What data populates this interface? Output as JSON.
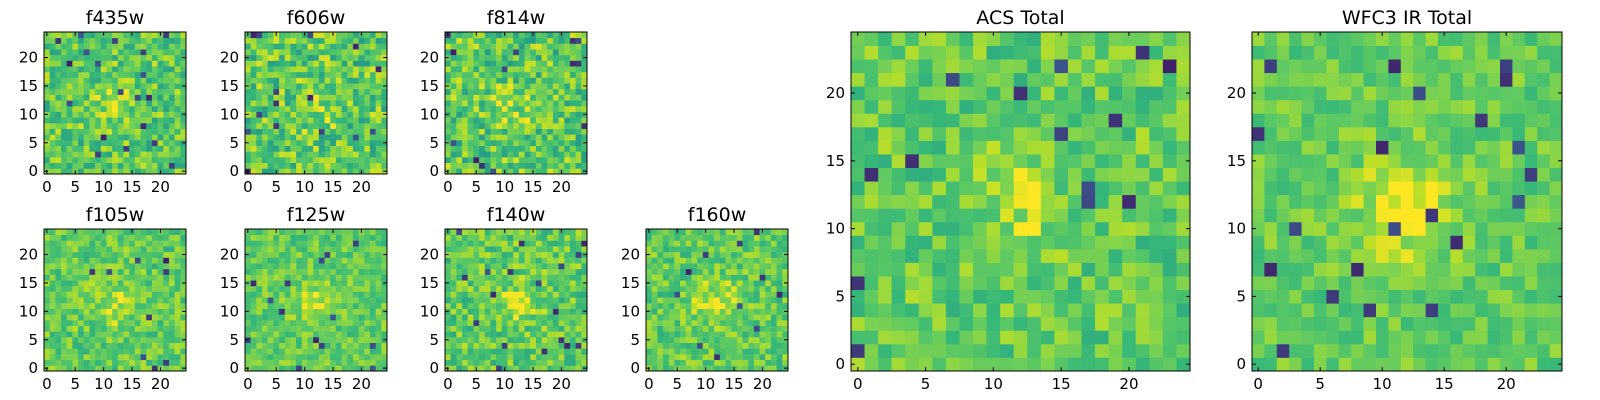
{
  "chart_data": [
    {
      "type": "heatmap",
      "title": "f435w",
      "size": 25,
      "colormap": "viridis",
      "xticks": [
        0,
        5,
        10,
        15,
        20
      ],
      "yticks": [
        0,
        5,
        10,
        15,
        20
      ],
      "xlim": [
        -0.5,
        24.5
      ],
      "ylim": [
        -0.5,
        24.5
      ],
      "grid": false
    },
    {
      "type": "heatmap",
      "title": "f606w",
      "size": 25,
      "colormap": "viridis",
      "xticks": [
        0,
        5,
        10,
        15,
        20
      ],
      "yticks": [
        0,
        5,
        10,
        15,
        20
      ],
      "xlim": [
        -0.5,
        24.5
      ],
      "ylim": [
        -0.5,
        24.5
      ],
      "grid": false
    },
    {
      "type": "heatmap",
      "title": "f814w",
      "size": 25,
      "colormap": "viridis",
      "xticks": [
        0,
        5,
        10,
        15,
        20
      ],
      "yticks": [
        0,
        5,
        10,
        15,
        20
      ],
      "xlim": [
        -0.5,
        24.5
      ],
      "ylim": [
        -0.5,
        24.5
      ],
      "grid": false
    },
    {
      "type": "heatmap",
      "title": "f105w",
      "size": 25,
      "colormap": "viridis",
      "xticks": [
        0,
        5,
        10,
        15,
        20
      ],
      "yticks": [
        0,
        5,
        10,
        15,
        20
      ],
      "xlim": [
        -0.5,
        24.5
      ],
      "ylim": [
        -0.5,
        24.5
      ],
      "grid": false
    },
    {
      "type": "heatmap",
      "title": "f125w",
      "size": 25,
      "colormap": "viridis",
      "xticks": [
        0,
        5,
        10,
        15,
        20
      ],
      "yticks": [
        0,
        5,
        10,
        15,
        20
      ],
      "xlim": [
        -0.5,
        24.5
      ],
      "ylim": [
        -0.5,
        24.5
      ],
      "grid": false
    },
    {
      "type": "heatmap",
      "title": "f140w",
      "size": 25,
      "colormap": "viridis",
      "xticks": [
        0,
        5,
        10,
        15,
        20
      ],
      "yticks": [
        0,
        5,
        10,
        15,
        20
      ],
      "xlim": [
        -0.5,
        24.5
      ],
      "ylim": [
        -0.5,
        24.5
      ],
      "grid": false
    },
    {
      "type": "heatmap",
      "title": "f160w",
      "size": 25,
      "colormap": "viridis",
      "xticks": [
        0,
        5,
        10,
        15,
        20
      ],
      "yticks": [
        0,
        5,
        10,
        15,
        20
      ],
      "xlim": [
        -0.5,
        24.5
      ],
      "ylim": [
        -0.5,
        24.5
      ],
      "grid": false
    },
    {
      "type": "heatmap",
      "title": "ACS Total",
      "size": 25,
      "colormap": "viridis",
      "xticks": [
        0,
        5,
        10,
        15,
        20
      ],
      "yticks": [
        0,
        5,
        10,
        15,
        20
      ],
      "xlim": [
        -0.5,
        24.5
      ],
      "ylim": [
        -0.5,
        24.5
      ],
      "grid": false
    },
    {
      "type": "heatmap",
      "title": "WFC3 IR Total",
      "size": 25,
      "colormap": "viridis",
      "xticks": [
        0,
        5,
        10,
        15,
        20
      ],
      "yticks": [
        0,
        5,
        10,
        15,
        20
      ],
      "xlim": [
        -0.5,
        24.5
      ],
      "ylim": [
        -0.5,
        24.5
      ],
      "grid": false
    }
  ]
}
